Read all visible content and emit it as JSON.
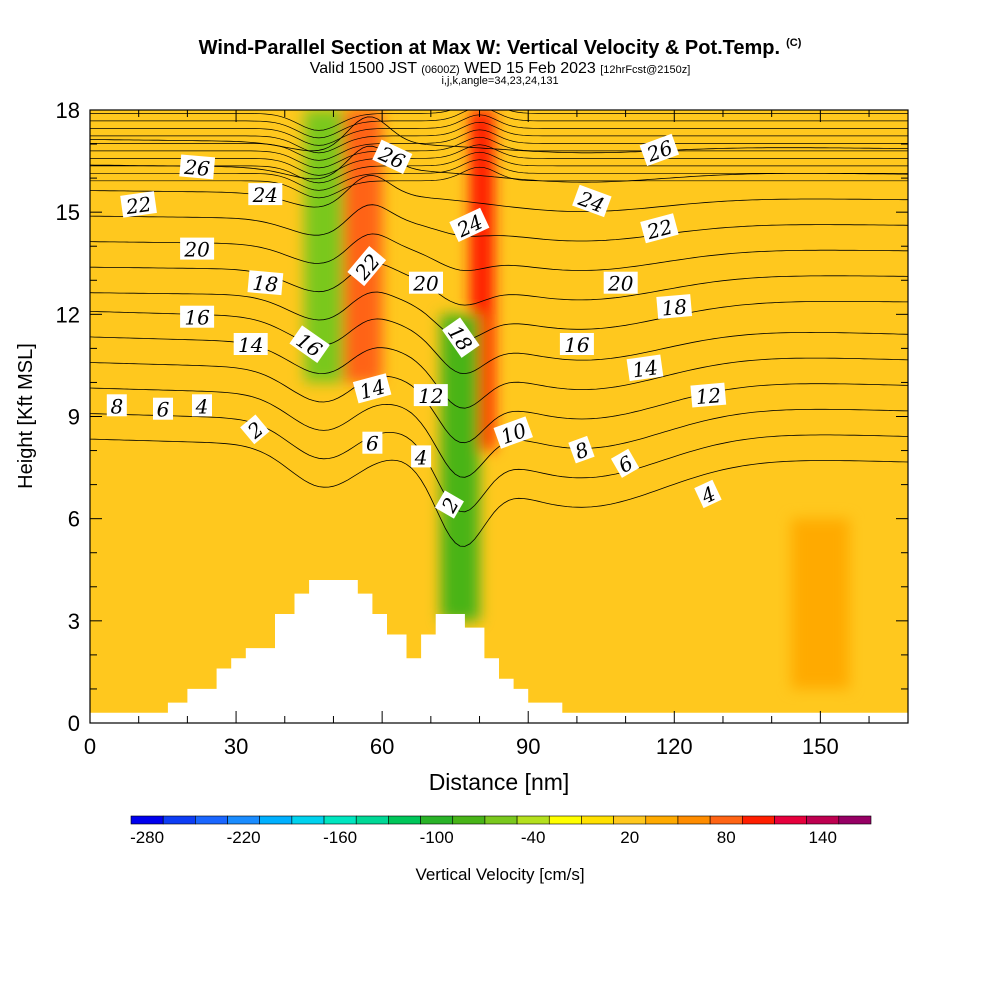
{
  "header": {
    "title": "Wind-Parallel Section at Max W: Vertical Velocity & Pot.Temp.",
    "copyright": "(C)",
    "subtitle_main": "Valid 1500 JST",
    "subtitle_utc": "(0600Z)",
    "subtitle_date": "WED 15 Feb 2023",
    "subtitle_fcst": "[12hrFcst@2150z]",
    "meta": "i,j,k,angle=34,23,24,131"
  },
  "colors": {
    "background_field": "#ffc81e",
    "contour": "#000000",
    "terrain": "#ffffff"
  },
  "chart_data": {
    "type": "heatmap",
    "xlabel": "Distance [nm]",
    "ylabel": "Height [Kft MSL]",
    "xlim": [
      0,
      168
    ],
    "ylim": [
      0,
      18
    ],
    "xticks": [
      0,
      30,
      60,
      90,
      120,
      150
    ],
    "yticks": [
      0,
      3,
      6,
      9,
      12,
      15,
      18
    ],
    "grid": false,
    "colorbar": {
      "label": "Vertical Velocity [cm/s]",
      "ticks": [
        -280,
        -220,
        -160,
        -100,
        -40,
        20,
        80,
        140
      ],
      "levels": [
        -290,
        -270,
        -250,
        -230,
        -210,
        -190,
        -170,
        -150,
        -130,
        -110,
        -90,
        -70,
        -50,
        -30,
        -10,
        10,
        30,
        50,
        70,
        90,
        110,
        130,
        150,
        170
      ],
      "colors": [
        "#0000ee",
        "#0d3df5",
        "#1a66ff",
        "#1a8cff",
        "#00b0ff",
        "#00d2ee",
        "#00e6c0",
        "#00d896",
        "#00c65a",
        "#2ab328",
        "#48b418",
        "#7ac81e",
        "#b4e01e",
        "#ffff00",
        "#ffe000",
        "#ffc81e",
        "#ffaa00",
        "#ff8c00",
        "#ff6414",
        "#ff1e00",
        "#e6003c",
        "#be0050",
        "#960064",
        "#6e0078"
      ]
    },
    "theta_contour_labels": [
      {
        "text": "26",
        "x": 22,
        "y": 16.3,
        "angle": 5
      },
      {
        "text": "24",
        "x": 36,
        "y": 15.5,
        "angle": 0
      },
      {
        "text": "22",
        "x": 10,
        "y": 15.2,
        "angle": -8
      },
      {
        "text": "20",
        "x": 22,
        "y": 13.9,
        "angle": 0
      },
      {
        "text": "18",
        "x": 36,
        "y": 12.9,
        "angle": 5
      },
      {
        "text": "16",
        "x": 22,
        "y": 11.9,
        "angle": 0
      },
      {
        "text": "14",
        "x": 33,
        "y": 11.1,
        "angle": 0
      },
      {
        "text": "16",
        "x": 45,
        "y": 11.1,
        "angle": 35
      },
      {
        "text": "22",
        "x": 57,
        "y": 13.4,
        "angle": -50
      },
      {
        "text": "26",
        "x": 62,
        "y": 16.6,
        "angle": 25
      },
      {
        "text": "24",
        "x": 78,
        "y": 14.6,
        "angle": -25
      },
      {
        "text": "20",
        "x": 69,
        "y": 12.9,
        "angle": 0
      },
      {
        "text": "18",
        "x": 76,
        "y": 11.3,
        "angle": 55
      },
      {
        "text": "14",
        "x": 58,
        "y": 9.8,
        "angle": -15
      },
      {
        "text": "12",
        "x": 70,
        "y": 9.6,
        "angle": 0
      },
      {
        "text": "10",
        "x": 87,
        "y": 8.5,
        "angle": -20
      },
      {
        "text": "8",
        "x": 5.5,
        "y": 9.3,
        "angle": 0
      },
      {
        "text": "6",
        "x": 15,
        "y": 9.2,
        "angle": 0
      },
      {
        "text": "4",
        "x": 23,
        "y": 9.3,
        "angle": 0
      },
      {
        "text": "2",
        "x": 34,
        "y": 8.6,
        "angle": -40
      },
      {
        "text": "6",
        "x": 58,
        "y": 8.2,
        "angle": 0
      },
      {
        "text": "4",
        "x": 68,
        "y": 7.8,
        "angle": 0
      },
      {
        "text": "2",
        "x": 74,
        "y": 6.4,
        "angle": -60
      },
      {
        "text": "8",
        "x": 101,
        "y": 8.0,
        "angle": -20
      },
      {
        "text": "6",
        "x": 110,
        "y": 7.6,
        "angle": -30
      },
      {
        "text": "4",
        "x": 127,
        "y": 6.7,
        "angle": -25
      },
      {
        "text": "24",
        "x": 103,
        "y": 15.3,
        "angle": 20
      },
      {
        "text": "26",
        "x": 117,
        "y": 16.8,
        "angle": -20
      },
      {
        "text": "22",
        "x": 117,
        "y": 14.5,
        "angle": -15
      },
      {
        "text": "20",
        "x": 109,
        "y": 12.9,
        "angle": 0
      },
      {
        "text": "18",
        "x": 120,
        "y": 12.2,
        "angle": -5
      },
      {
        "text": "16",
        "x": 100,
        "y": 11.1,
        "angle": 0
      },
      {
        "text": "14",
        "x": 114,
        "y": 10.4,
        "angle": -8
      },
      {
        "text": "12",
        "x": 127,
        "y": 9.6,
        "angle": -5
      }
    ],
    "theta_levels": [
      2,
      4,
      6,
      8,
      10,
      12,
      14,
      16,
      18,
      20,
      22,
      24,
      26
    ],
    "terrain_profile": [
      {
        "x": 0,
        "y": 0.3
      },
      {
        "x": 16,
        "y": 0.3
      },
      {
        "x": 16,
        "y": 0.6
      },
      {
        "x": 20,
        "y": 0.6
      },
      {
        "x": 20,
        "y": 1.0
      },
      {
        "x": 26,
        "y": 1.0
      },
      {
        "x": 26,
        "y": 1.6
      },
      {
        "x": 29,
        "y": 1.6
      },
      {
        "x": 29,
        "y": 1.9
      },
      {
        "x": 32,
        "y": 1.9
      },
      {
        "x": 32,
        "y": 2.2
      },
      {
        "x": 38,
        "y": 2.2
      },
      {
        "x": 38,
        "y": 3.2
      },
      {
        "x": 42,
        "y": 3.2
      },
      {
        "x": 42,
        "y": 3.8
      },
      {
        "x": 45,
        "y": 3.8
      },
      {
        "x": 45,
        "y": 4.2
      },
      {
        "x": 55,
        "y": 4.2
      },
      {
        "x": 55,
        "y": 3.8
      },
      {
        "x": 58,
        "y": 3.8
      },
      {
        "x": 58,
        "y": 3.2
      },
      {
        "x": 61,
        "y": 3.2
      },
      {
        "x": 61,
        "y": 2.6
      },
      {
        "x": 65,
        "y": 2.6
      },
      {
        "x": 65,
        "y": 1.9
      },
      {
        "x": 68,
        "y": 1.9
      },
      {
        "x": 68,
        "y": 2.6
      },
      {
        "x": 71,
        "y": 2.6
      },
      {
        "x": 71,
        "y": 3.2
      },
      {
        "x": 77,
        "y": 3.2
      },
      {
        "x": 77,
        "y": 2.8
      },
      {
        "x": 81,
        "y": 2.8
      },
      {
        "x": 81,
        "y": 1.9
      },
      {
        "x": 84,
        "y": 1.9
      },
      {
        "x": 84,
        "y": 1.3
      },
      {
        "x": 87,
        "y": 1.3
      },
      {
        "x": 87,
        "y": 1.0
      },
      {
        "x": 90,
        "y": 1.0
      },
      {
        "x": 90,
        "y": 0.6
      },
      {
        "x": 97,
        "y": 0.6
      },
      {
        "x": 97,
        "y": 0.3
      },
      {
        "x": 168,
        "y": 0.3
      },
      {
        "x": 168,
        "y": 0
      },
      {
        "x": 0,
        "y": 0
      }
    ],
    "velocity_features": [
      {
        "name": "updraft-core-left",
        "x": [
          52,
          60
        ],
        "y": [
          10,
          18
        ],
        "value": 80
      },
      {
        "name": "updraft-core-main",
        "x": [
          78,
          83
        ],
        "y": [
          8,
          18
        ],
        "value": 90
      },
      {
        "name": "downdraft-lee",
        "x": [
          72,
          80
        ],
        "y": [
          3,
          12
        ],
        "value": -90
      },
      {
        "name": "downdraft-upper-left",
        "x": [
          44,
          52
        ],
        "y": [
          10,
          18
        ],
        "value": -70
      },
      {
        "name": "updraft-far-right",
        "x": [
          144,
          156
        ],
        "y": [
          1,
          6
        ],
        "value": 40
      }
    ]
  }
}
